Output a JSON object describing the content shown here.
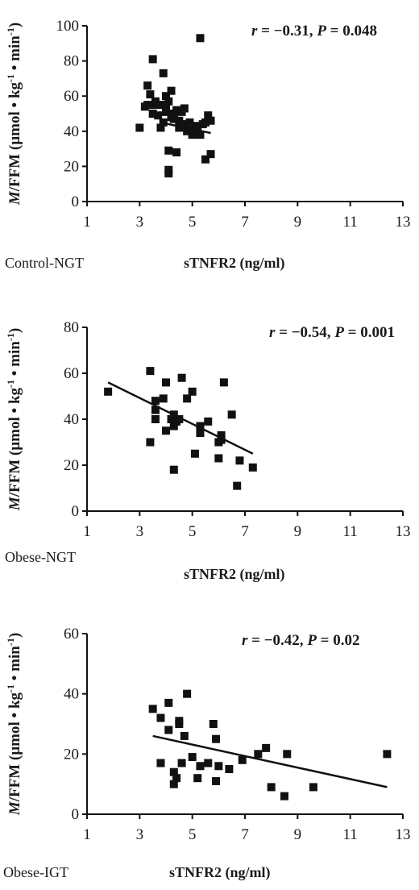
{
  "chart_data": [
    {
      "type": "scatter",
      "group_label": "Control-NGT",
      "xlabel": "sTNFR2 (ng/ml)",
      "ylabel": "M/FFM (µmol • kg⁻¹ • min⁻¹)",
      "ylabel_parts": {
        "italic": "M",
        "main": "/FFM (µmol • kg",
        "sup1": "-1",
        "mid": " • min",
        "sup2": "-1",
        "end": ")"
      },
      "annotation": {
        "r_label": "r",
        "r_text": " = −0.31, ",
        "p_label": "P",
        "p_text": " = 0.048"
      },
      "xlim": [
        1,
        13
      ],
      "ylim": [
        0,
        100
      ],
      "xticks": [
        1,
        3,
        5,
        7,
        9,
        11,
        13
      ],
      "yticks": [
        0,
        20,
        40,
        60,
        80,
        100
      ],
      "trendline": {
        "x": [
          3.8,
          5.7
        ],
        "y": [
          45,
          39
        ]
      },
      "points": [
        [
          3.0,
          42
        ],
        [
          3.2,
          54
        ],
        [
          3.3,
          66
        ],
        [
          3.3,
          55
        ],
        [
          3.4,
          61
        ],
        [
          3.5,
          50
        ],
        [
          3.5,
          81
        ],
        [
          3.6,
          55
        ],
        [
          3.6,
          57
        ],
        [
          3.7,
          49
        ],
        [
          3.8,
          42
        ],
        [
          3.8,
          55
        ],
        [
          3.9,
          73
        ],
        [
          3.9,
          45
        ],
        [
          4.0,
          60
        ],
        [
          4.0,
          52
        ],
        [
          4.0,
          51
        ],
        [
          4.0,
          55
        ],
        [
          4.1,
          57
        ],
        [
          4.1,
          29
        ],
        [
          4.1,
          18
        ],
        [
          4.1,
          16
        ],
        [
          4.2,
          63
        ],
        [
          4.2,
          48
        ],
        [
          4.3,
          50
        ],
        [
          4.4,
          28
        ],
        [
          4.4,
          52
        ],
        [
          4.5,
          42
        ],
        [
          4.5,
          46
        ],
        [
          4.6,
          44
        ],
        [
          4.6,
          51
        ],
        [
          4.7,
          53
        ],
        [
          4.8,
          40
        ],
        [
          4.9,
          45
        ],
        [
          5.0,
          41
        ],
        [
          5.0,
          38
        ],
        [
          5.1,
          43
        ],
        [
          5.2,
          40
        ],
        [
          5.3,
          38
        ],
        [
          5.3,
          93
        ],
        [
          5.4,
          44
        ],
        [
          5.5,
          45
        ],
        [
          5.5,
          24
        ],
        [
          5.6,
          49
        ],
        [
          5.7,
          27
        ],
        [
          5.7,
          46
        ],
        [
          4.9,
          43
        ],
        [
          4.3,
          47
        ]
      ]
    },
    {
      "type": "scatter",
      "group_label": "Obese-NGT",
      "xlabel": "sTNFR2 (ng/ml)",
      "ylabel": "M/FFM (µmol • kg⁻¹ • min⁻¹)",
      "ylabel_parts": {
        "italic": "M",
        "main": "/FFM (µmol • kg",
        "sup1": "-1",
        "mid": " • min",
        "sup2": "-1",
        "end": ")"
      },
      "annotation": {
        "r_label": "r",
        "r_text": " = −0.54, ",
        "p_label": "P",
        "p_text": " = 0.001"
      },
      "xlim": [
        1,
        13
      ],
      "ylim": [
        0,
        80
      ],
      "xticks": [
        1,
        3,
        5,
        7,
        9,
        11,
        13
      ],
      "yticks": [
        0,
        20,
        40,
        60,
        80
      ],
      "trendline": {
        "x": [
          1.8,
          7.3
        ],
        "y": [
          56,
          25
        ]
      },
      "points": [
        [
          1.8,
          52
        ],
        [
          3.4,
          61
        ],
        [
          3.4,
          30
        ],
        [
          3.6,
          48
        ],
        [
          3.6,
          44
        ],
        [
          3.6,
          40
        ],
        [
          3.9,
          49
        ],
        [
          4.0,
          56
        ],
        [
          4.0,
          35
        ],
        [
          4.2,
          40
        ],
        [
          4.3,
          37
        ],
        [
          4.3,
          18
        ],
        [
          4.3,
          42
        ],
        [
          4.4,
          39
        ],
        [
          4.5,
          40
        ],
        [
          4.6,
          58
        ],
        [
          4.8,
          49
        ],
        [
          5.0,
          52
        ],
        [
          5.1,
          25
        ],
        [
          5.3,
          37
        ],
        [
          5.3,
          35
        ],
        [
          5.6,
          39
        ],
        [
          6.0,
          23
        ],
        [
          6.0,
          30
        ],
        [
          6.1,
          33
        ],
        [
          6.2,
          56
        ],
        [
          6.5,
          42
        ],
        [
          6.7,
          11
        ],
        [
          6.8,
          22
        ],
        [
          7.3,
          19
        ],
        [
          6.1,
          31
        ],
        [
          5.3,
          34
        ]
      ]
    },
    {
      "type": "scatter",
      "group_label": "Obese-IGT",
      "xlabel": "sTNFR2 (ng/ml)",
      "ylabel": "M/FFM (µmol • kg⁻¹ • min⁻¹)",
      "ylabel_parts": {
        "italic": "M",
        "main": "/FFM (µmol • kg",
        "sup1": "-1",
        "mid": " • min",
        "sup2": "-1",
        "end": ")"
      },
      "annotation": {
        "r_label": "r",
        "r_text": " = −0.42, ",
        "p_label": "P",
        "p_text": " = 0.02"
      },
      "xlim": [
        1,
        13
      ],
      "ylim": [
        0,
        60
      ],
      "xticks": [
        1,
        3,
        5,
        7,
        9,
        11,
        13
      ],
      "yticks": [
        0,
        20,
        40,
        60
      ],
      "trendline": {
        "x": [
          3.5,
          12.4
        ],
        "y": [
          26,
          9
        ]
      },
      "points": [
        [
          3.5,
          35
        ],
        [
          3.8,
          32
        ],
        [
          3.8,
          17
        ],
        [
          4.1,
          37
        ],
        [
          4.1,
          28
        ],
        [
          4.3,
          14
        ],
        [
          4.3,
          10
        ],
        [
          4.4,
          12
        ],
        [
          4.5,
          31
        ],
        [
          4.5,
          30
        ],
        [
          4.6,
          17
        ],
        [
          4.7,
          26
        ],
        [
          4.8,
          40
        ],
        [
          5.0,
          19
        ],
        [
          5.2,
          12
        ],
        [
          5.3,
          16
        ],
        [
          5.6,
          17
        ],
        [
          5.8,
          30
        ],
        [
          5.9,
          11
        ],
        [
          5.9,
          25
        ],
        [
          6.0,
          16
        ],
        [
          6.4,
          15
        ],
        [
          6.9,
          18
        ],
        [
          7.5,
          20
        ],
        [
          7.8,
          22
        ],
        [
          8.0,
          9
        ],
        [
          8.5,
          6
        ],
        [
          8.6,
          20
        ],
        [
          9.6,
          9
        ],
        [
          12.4,
          20
        ]
      ]
    }
  ]
}
